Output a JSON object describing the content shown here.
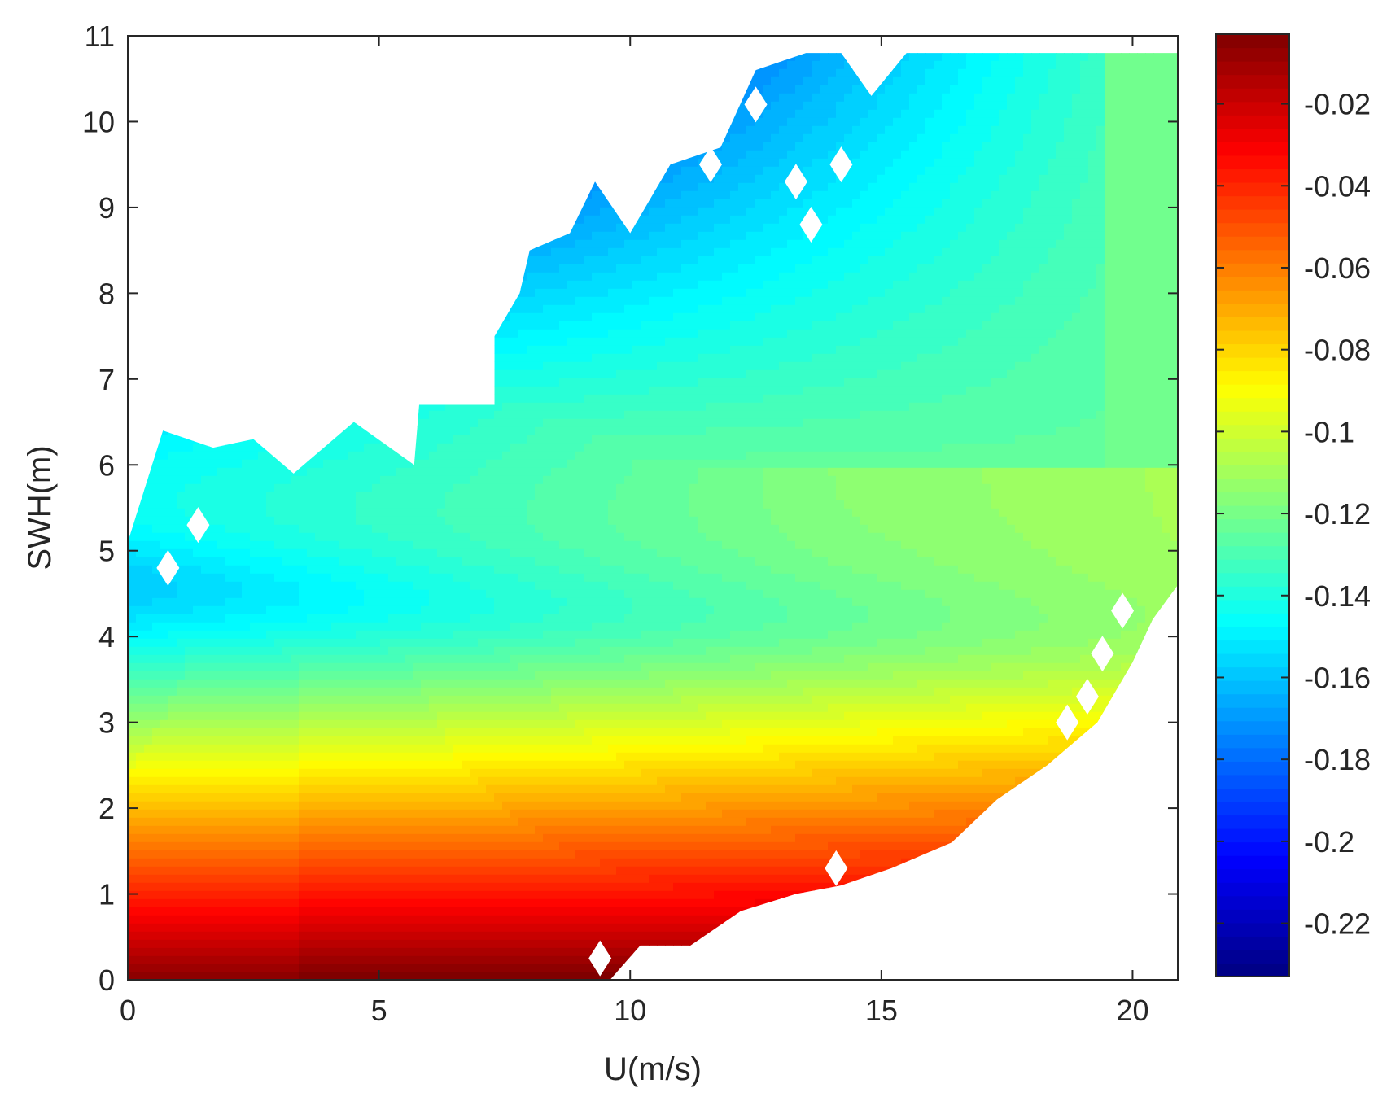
{
  "chart_data": {
    "type": "heatmap",
    "subtype": "filled-contour",
    "title": "",
    "xlabel": "U(m/s)",
    "ylabel": "SWH(m)",
    "xlim": [
      0,
      20.9
    ],
    "ylim": [
      0,
      11
    ],
    "x_ticks": [
      0,
      5,
      10,
      15,
      20
    ],
    "y_ticks": [
      0,
      1,
      2,
      3,
      4,
      5,
      6,
      7,
      8,
      9,
      10,
      11
    ],
    "colormap": "jet",
    "colorbar": {
      "position": "right",
      "limits": [
        -0.233,
        -0.003
      ],
      "ticks": [
        -0.02,
        -0.04,
        -0.06,
        -0.08,
        -0.1,
        -0.12,
        -0.14,
        -0.16,
        -0.18,
        -0.2,
        -0.22
      ],
      "tick_labels": [
        "-0.02",
        "-0.04",
        "-0.06",
        "-0.08",
        "-0.1",
        "-0.12",
        "-0.14",
        "-0.16",
        "-0.18",
        "-0.2",
        "-0.22"
      ]
    },
    "value_samples": [
      {
        "u": 2,
        "swh": 0.2,
        "value": -0.01
      },
      {
        "u": 2,
        "swh": 1.0,
        "value": -0.03
      },
      {
        "u": 2,
        "swh": 2.0,
        "value": -0.055
      },
      {
        "u": 2,
        "swh": 3.0,
        "value": -0.08
      },
      {
        "u": 2,
        "swh": 4.0,
        "value": -0.1
      },
      {
        "u": 2,
        "swh": 5.5,
        "value": -0.13
      },
      {
        "u": 10,
        "swh": 3.0,
        "value": -0.085
      },
      {
        "u": 10,
        "swh": 4.5,
        "value": -0.12
      },
      {
        "u": 10,
        "swh": 6.5,
        "value": -0.14
      },
      {
        "u": 12,
        "swh": 8.0,
        "value": -0.16
      },
      {
        "u": 12,
        "swh": 10.0,
        "value": -0.2
      },
      {
        "u": 18,
        "swh": 8.0,
        "value": -0.15
      },
      {
        "u": 20.5,
        "swh": 9.0,
        "value": -0.12
      }
    ],
    "grid": false,
    "data_domain_boundary": {
      "upper": [
        [
          0,
          5.1
        ],
        [
          0.7,
          6.4
        ],
        [
          1.7,
          6.2
        ],
        [
          2.5,
          6.3
        ],
        [
          3.3,
          5.9
        ],
        [
          4.5,
          6.5
        ],
        [
          5.7,
          6.0
        ],
        [
          5.8,
          6.7
        ],
        [
          7.3,
          6.7
        ],
        [
          7.3,
          7.5
        ],
        [
          7.8,
          8.0
        ],
        [
          8.0,
          8.5
        ],
        [
          8.8,
          8.7
        ],
        [
          9.3,
          9.3
        ],
        [
          10.0,
          8.7
        ],
        [
          10.8,
          9.5
        ],
        [
          11.8,
          9.7
        ],
        [
          12.5,
          10.6
        ],
        [
          13.5,
          10.8
        ],
        [
          14.2,
          10.8
        ],
        [
          14.8,
          10.3
        ],
        [
          15.5,
          10.8
        ],
        [
          20.9,
          10.8
        ]
      ],
      "lower": [
        [
          0,
          0
        ],
        [
          9.6,
          0
        ],
        [
          10.2,
          0.4
        ],
        [
          11.2,
          0.4
        ],
        [
          12.2,
          0.8
        ],
        [
          13.3,
          1.0
        ],
        [
          14.2,
          1.1
        ],
        [
          15.2,
          1.3
        ],
        [
          16.4,
          1.6
        ],
        [
          17.3,
          2.1
        ],
        [
          18.3,
          2.5
        ],
        [
          19.3,
          3.0
        ],
        [
          20.0,
          3.7
        ],
        [
          20.4,
          4.2
        ],
        [
          20.9,
          4.6
        ]
      ]
    }
  }
}
